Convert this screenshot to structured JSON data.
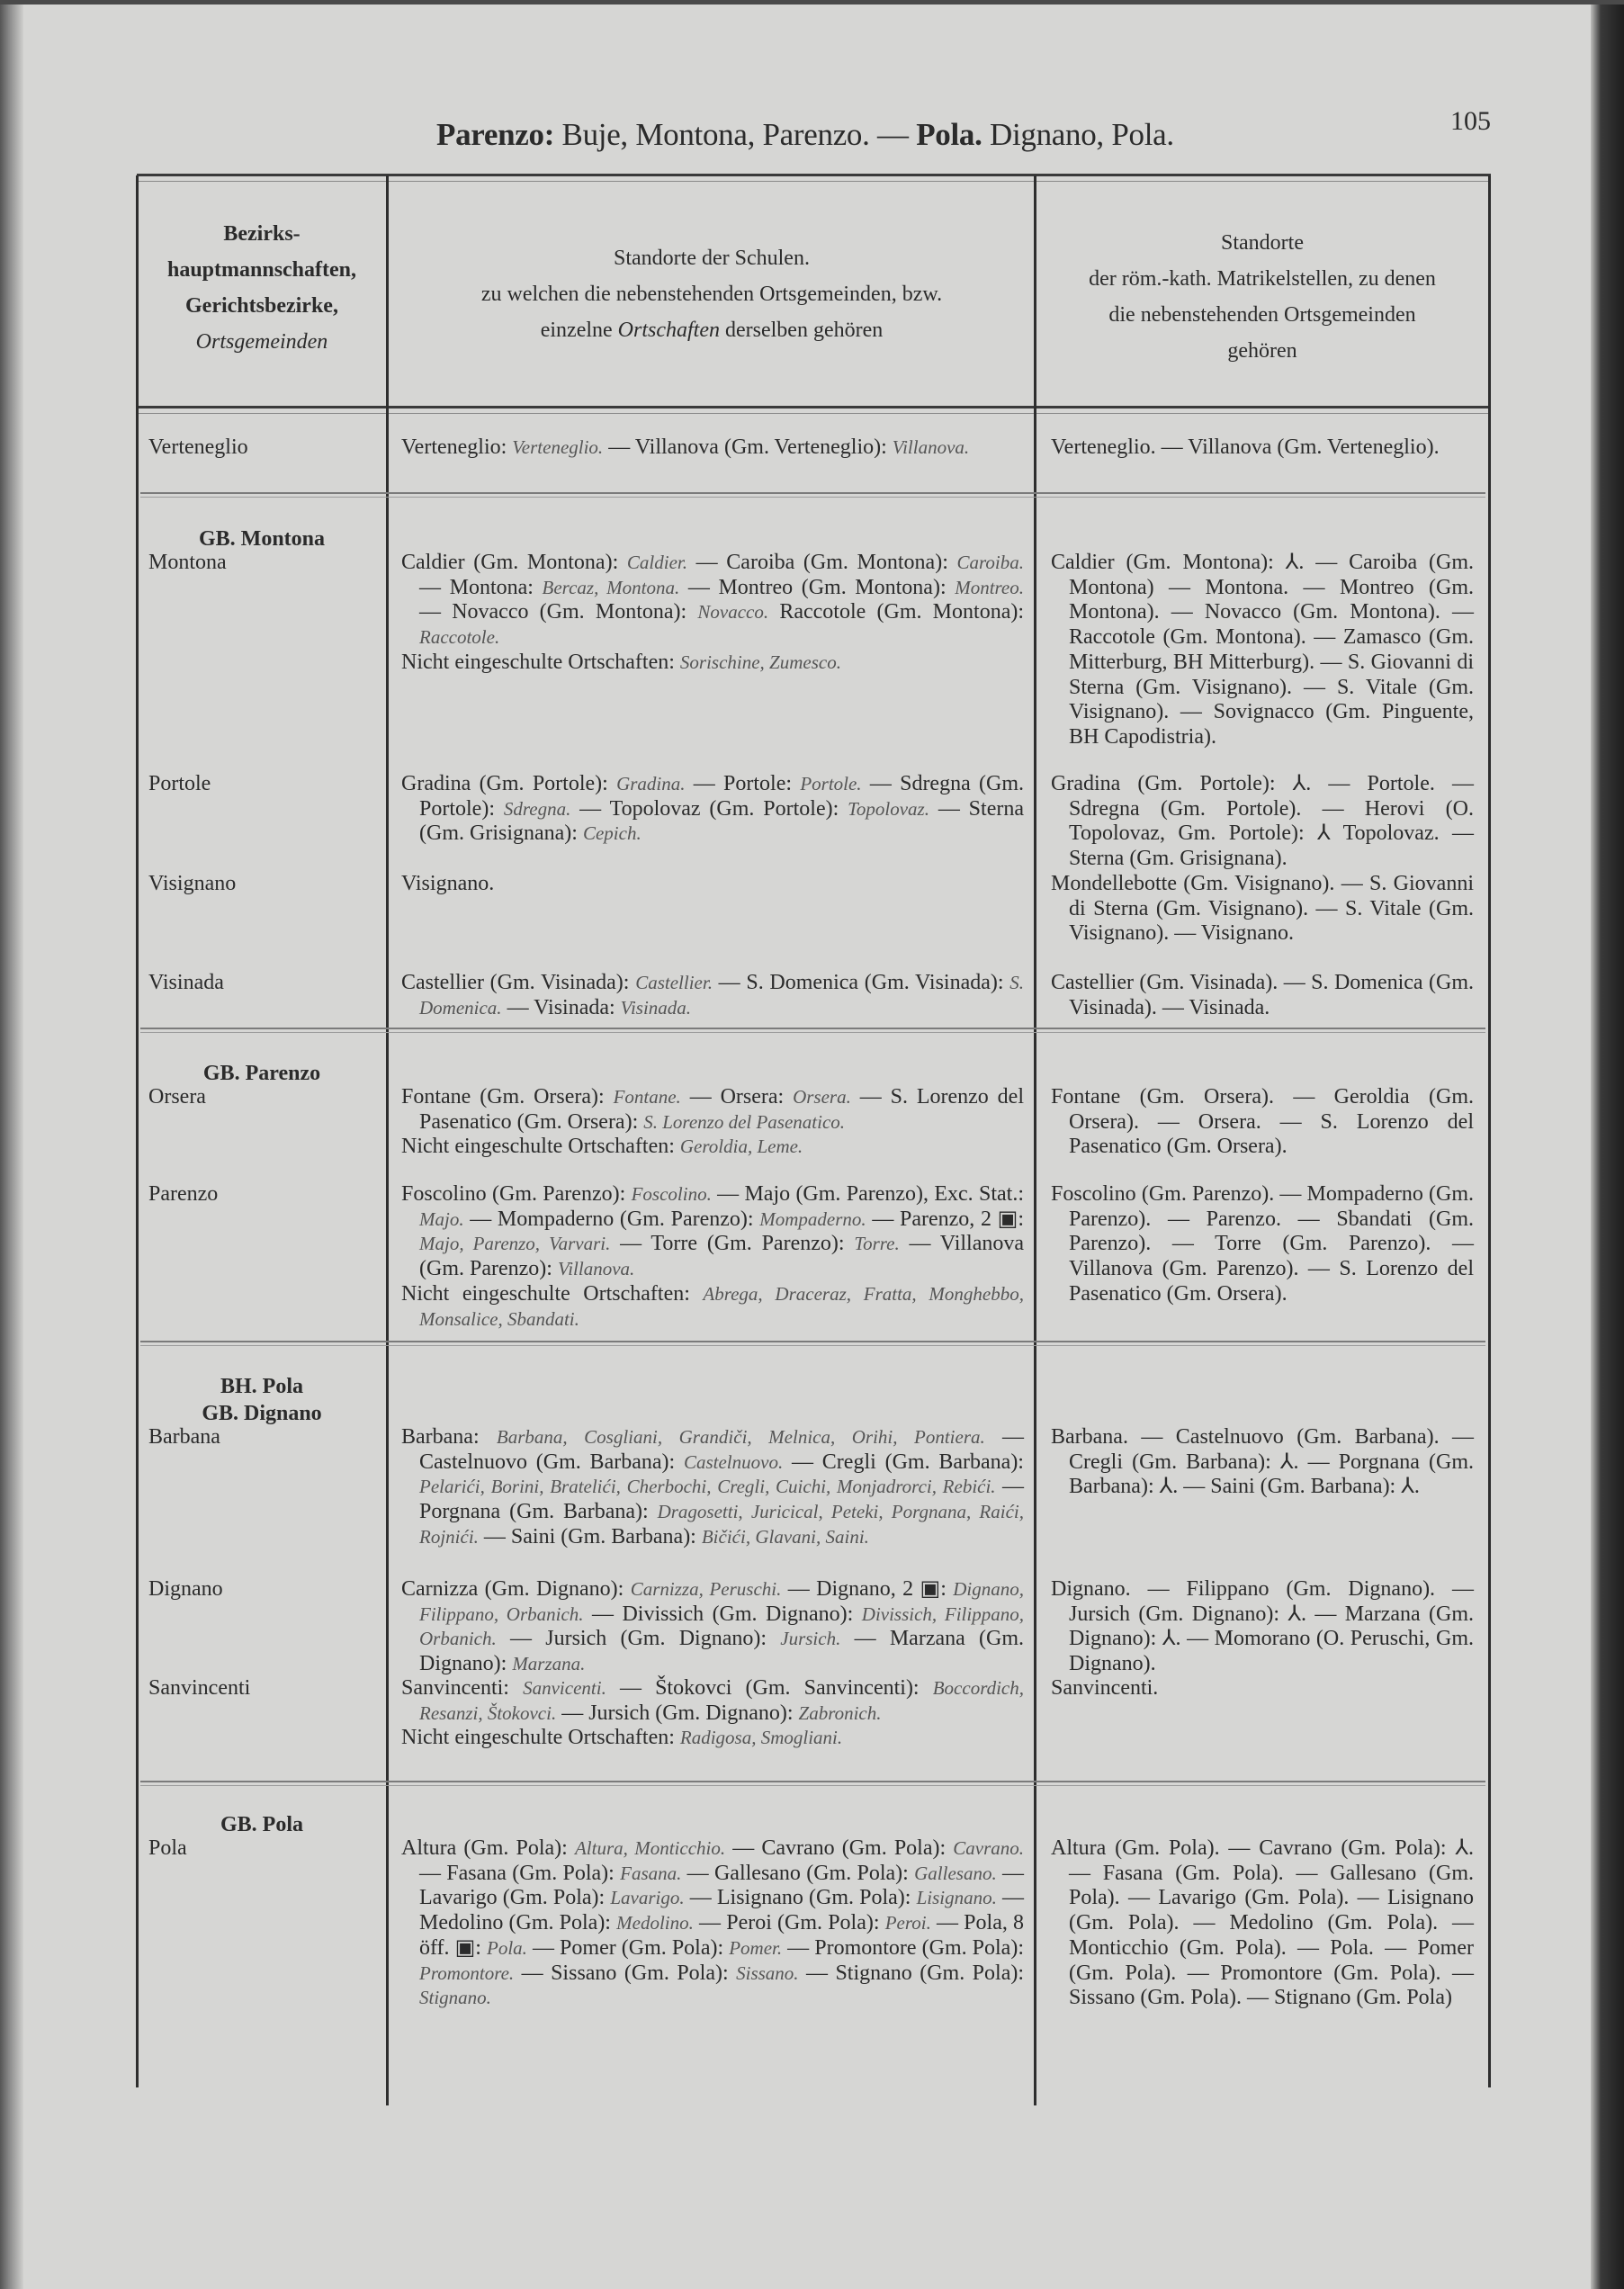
{
  "page": {
    "number": "105",
    "title": [
      "Parenzo:",
      " Buje, Montona, Parenzo. — ",
      "Pola.",
      " Dignano, Pola."
    ]
  },
  "columns": {
    "col1": [
      "Bezirks-",
      "hauptmannschaften,",
      "Gerichtsbezirke,",
      "Ortsgemeinden"
    ],
    "col2": {
      "line1": "Standorte der Schulen.",
      "line2": "zu welchen die nebenstehenden Ortsgemeinden, bzw.",
      "line3": [
        "einzelne ",
        "Ortschaften",
        " derselben gehören"
      ]
    },
    "col3": [
      "Standorte",
      "der röm.-kath. Matrikelstellen, zu denen",
      "die nebenstehenden Ortsgemeinden",
      "gehören"
    ]
  },
  "rows": [
    {
      "group": [],
      "name": "Verteneglio",
      "schools": [
        [
          "Verteneglio: ",
          "Verteneglio.",
          " — Villanova (Gm. Verteneglio): ",
          "Villanova."
        ]
      ],
      "parishes": [
        [
          "Verteneglio. — Villanova (Gm. Verteneglio)."
        ]
      ]
    },
    {
      "group": [
        "GB. Montona"
      ],
      "name": "Montona",
      "schools": [
        [
          "Caldier (Gm. Montona): ",
          "Caldier.",
          " — Caroiba (Gm. Montona): ",
          "Caroiba.",
          " — Montona: ",
          "Bercaz, Montona.",
          " — Montreo (Gm. Montona): ",
          "Montreo.",
          " — Novacco (Gm. Montona): ",
          "Novacco.",
          " Raccotole (Gm. Montona): ",
          "Raccotole."
        ],
        [
          "Nicht eingeschulte Ortschaften: ",
          "Sorischine, Zumesco."
        ]
      ],
      "parishes": [
        [
          "Caldier (Gm. Montona): ⅄. — Caroiba (Gm. Montona) — Montona. — Montreo (Gm. Montona). — Novacco (Gm. Montona). — Raccotole (Gm. Montona). — Zamasco (Gm. Mitterburg, BH Mitterburg). — S. Giovanni di Sterna (Gm. Visignano). — S. Vitale (Gm. Visignano). — Sovignacco (Gm. Pinguente, BH Capodistria)."
        ]
      ]
    },
    {
      "group": [],
      "name": "Portole",
      "schools": [
        [
          "Gradina (Gm. Portole): ",
          "Gradina.",
          " — Portole: ",
          "Portole.",
          " — Sdregna (Gm. Portole): ",
          "Sdregna.",
          " — Topolovaz (Gm. Portole): ",
          "Topolovaz.",
          " — Sterna (Gm. Grisignana): ",
          "Cepich."
        ]
      ],
      "parishes": [
        [
          "Gradina (Gm. Portole): ⅄. — Portole. — Sdregna (Gm. Portole). — Herovi (O. Topolovaz, Gm. Portole): ⅄ Topolovaz. — Sterna (Gm. Grisignana)."
        ]
      ]
    },
    {
      "group": [],
      "name": "Visignano",
      "schools": [
        [
          "Visignano."
        ]
      ],
      "parishes": [
        [
          "Mondellebotte (Gm. Visignano). — S. Giovanni di Sterna (Gm. Visignano). — S. Vitale (Gm. Visignano). — Visignano."
        ]
      ]
    },
    {
      "group": [],
      "name": "Visinada",
      "schools": [
        [
          "Castellier (Gm. Visinada): ",
          "Castellier.",
          " — S. Domenica (Gm. Visinada): ",
          "S. Domenica.",
          " — Visinada: ",
          "Visinada."
        ]
      ],
      "parishes": [
        [
          "Castellier (Gm. Visinada). — S. Domenica (Gm. Visinada). — Visinada."
        ]
      ]
    },
    {
      "group": [
        "GB. Parenzo"
      ],
      "name": "Orsera",
      "schools": [
        [
          "Fontane (Gm. Orsera): ",
          "Fontane.",
          " — Orsera: ",
          "Orsera.",
          " — S. Lorenzo del Pasenatico (Gm. Orsera): ",
          "S. Lorenzo del Pasenatico."
        ],
        [
          "Nicht eingeschulte Ortschaften: ",
          "Geroldia, Leme."
        ]
      ],
      "parishes": [
        [
          "Fontane (Gm. Orsera). — Geroldia (Gm. Orsera). — Orsera. — S. Lorenzo del Pasenatico (Gm. Orsera)."
        ]
      ]
    },
    {
      "group": [],
      "name": "Parenzo",
      "schools": [
        [
          "Foscolino (Gm. Parenzo): ",
          "Foscolino.",
          " — Majo (Gm. Parenzo), Exc. Stat.: ",
          "Majo.",
          " — Mompaderno (Gm. Parenzo): ",
          "Mompaderno.",
          " — Parenzo, 2 ▣: ",
          "Majo, Parenzo, Varvari.",
          " — Torre (Gm. Parenzo): ",
          "Torre.",
          " — Villanova (Gm. Parenzo): ",
          "Villanova."
        ],
        [
          "Nicht eingeschulte Ortschaften: ",
          "Abrega, Draceraz, Fratta, Monghebbo, Monsalice, Sbandati."
        ]
      ],
      "parishes": [
        [
          "Foscolino (Gm. Parenzo). — Mompaderno (Gm. Parenzo). — Parenzo. — Sbandati (Gm. Parenzo). — Torre (Gm. Parenzo). — Villanova (Gm. Parenzo). — S. Lorenzo del Pasenatico (Gm. Orsera)."
        ]
      ]
    },
    {
      "group": [
        "BH. Pola",
        "GB. Dignano"
      ],
      "name": "Barbana",
      "schools": [
        [
          "Barbana: ",
          "Barbana, Cosgliani, Grandiči, Melnica, Orihi, Pontiera.",
          " — Castelnuovo (Gm. Barbana): ",
          "Castelnuovo.",
          " — Cregli (Gm. Barbana): ",
          "Pelarići, Borini, Bratelići, Cherbochi, Cregli, Cuichi, Monjadrorci, Rebići.",
          " — Porgnana (Gm. Barbana): ",
          "Dragosetti, Juricical, Peteki, Porgnana, Raići, Rojnići.",
          " — Saini (Gm. Barbana): ",
          "Bičići, Glavani, Saini."
        ]
      ],
      "parishes": [
        [
          "Barbana. — Castelnuovo (Gm. Barbana). — Cregli (Gm. Barbana): ⅄. — Porgnana (Gm. Barbana): ⅄. — Saini (Gm. Barbana): ⅄."
        ]
      ]
    },
    {
      "group": [],
      "name": "Dignano",
      "schools": [
        [
          "Carnizza (Gm. Dignano): ",
          "Carnizza, Peruschi.",
          " — Dignano, 2 ▣: ",
          "Dignano, Filippano, Orbanich.",
          " — Divissich (Gm. Dignano): ",
          "Divissich, Filippano, Orbanich.",
          " — Jursich (Gm. Dignano): ",
          "Jursich.",
          " — Marzana (Gm. Dignano): ",
          "Marzana."
        ]
      ],
      "parishes": [
        [
          "Dignano. — Filippano (Gm. Dignano). — Jursich (Gm. Dignano): ⅄. — Marzana (Gm. Dignano): ⅄. — Momorano (O. Peruschi, Gm. Dignano)."
        ]
      ]
    },
    {
      "group": [],
      "name": "Sanvincenti",
      "schools": [
        [
          "Sanvincenti: ",
          "Sanvicenti.",
          " — Štokovci (Gm. Sanvincenti): ",
          "Boccordich, Resanzi, Štokovci.",
          " — Jursich (Gm. Dignano): ",
          "Zabronich."
        ],
        [
          "Nicht eingeschulte Ortschaften: ",
          "Radigosa, Smogliani."
        ]
      ],
      "parishes": [
        [
          "Sanvincenti."
        ]
      ]
    },
    {
      "group": [
        "GB. Pola"
      ],
      "name": "Pola",
      "schools": [
        [
          "Altura (Gm. Pola): ",
          "Altura, Monticchio.",
          " — Cavrano (Gm. Pola): ",
          "Cavrano.",
          " — Fasana (Gm. Pola): ",
          "Fasana.",
          " — Gallesano (Gm. Pola): ",
          "Gallesano.",
          " — Lavarigo (Gm. Pola): ",
          "Lavarigo.",
          " — Lisignano (Gm. Pola): ",
          "Lisignano.",
          " — Medolino (Gm. Pola): ",
          "Medolino.",
          " — Peroi (Gm. Pola): ",
          "Peroi.",
          " — Pola, 8 öff. ▣: ",
          "Pola.",
          " — Pomer (Gm. Pola): ",
          "Pomer.",
          " — Promontore (Gm. Pola): ",
          "Promontore.",
          " — Sissano (Gm. Pola): ",
          "Sissano.",
          " — Stignano (Gm. Pola): ",
          "Stignano."
        ]
      ],
      "parishes": [
        [
          "Altura (Gm. Pola). — Cavrano (Gm. Pola): ⅄. — Fasana (Gm. Pola). — Gallesano (Gm. Pola). — Lavarigo (Gm. Pola). — Lisignano (Gm. Pola). — Medolino (Gm. Pola). — Monticchio (Gm. Pola). — Pola. — Pomer (Gm. Pola). — Promontore (Gm. Pola). — Sissano (Gm. Pola). — Stignano (Gm. Pola)"
        ]
      ]
    }
  ]
}
